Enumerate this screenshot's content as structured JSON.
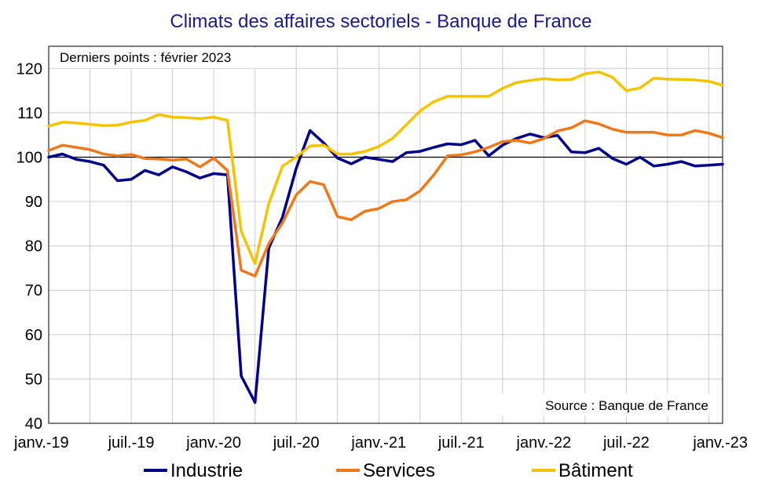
{
  "chart_data": {
    "type": "line",
    "title": "Climats des affaires sectoriels  - Banque de France",
    "annotation": "Derniers points : février 2023",
    "source": "Source : Banque de France",
    "xlabel": "",
    "ylabel": "",
    "ylim": [
      40,
      125
    ],
    "yticks": [
      40,
      50,
      60,
      70,
      80,
      90,
      100,
      110,
      120
    ],
    "reference_line": 100,
    "x": [
      "2019-01",
      "2019-02",
      "2019-03",
      "2019-04",
      "2019-05",
      "2019-06",
      "2019-07",
      "2019-08",
      "2019-09",
      "2019-10",
      "2019-11",
      "2019-12",
      "2020-01",
      "2020-02",
      "2020-03",
      "2020-04",
      "2020-05",
      "2020-06",
      "2020-07",
      "2020-08",
      "2020-09",
      "2020-10",
      "2020-11",
      "2020-12",
      "2021-01",
      "2021-02",
      "2021-03",
      "2021-04",
      "2021-05",
      "2021-06",
      "2021-07",
      "2021-08",
      "2021-09",
      "2021-10",
      "2021-11",
      "2021-12",
      "2022-01",
      "2022-02",
      "2022-03",
      "2022-04",
      "2022-05",
      "2022-06",
      "2022-07",
      "2022-08",
      "2022-09",
      "2022-10",
      "2022-11",
      "2022-12",
      "2023-01",
      "2023-02"
    ],
    "x_tick_labels": [
      "janv.-19",
      "juil.-19",
      "janv.-20",
      "juil.-20",
      "janv.-21",
      "juil.-21",
      "janv.-22",
      "juil.-22",
      "janv.-23"
    ],
    "x_tick_positions": [
      0,
      6,
      12,
      18,
      24,
      30,
      36,
      42,
      48
    ],
    "grid": true,
    "legend_position": "bottom",
    "series": [
      {
        "name": "Industrie",
        "color": "#00008b",
        "values": [
          100,
          100.7,
          99.5,
          99,
          98.2,
          94.7,
          95,
          97,
          96,
          97.8,
          96.7,
          95.3,
          96.3,
          96,
          50.7,
          44.7,
          79.5,
          86.5,
          97.5,
          106,
          103.2,
          99.8,
          98.5,
          100,
          99.5,
          99,
          101,
          101.3,
          102.2,
          103,
          102.8,
          103.8,
          100.3,
          102.7,
          104.2,
          105.2,
          104.4,
          104.9,
          101.2,
          101,
          102,
          99.7,
          98.4,
          100,
          98,
          98.4,
          99,
          98,
          98.2,
          98.4
        ]
      },
      {
        "name": "Services",
        "color": "#f07818",
        "values": [
          101.5,
          102.7,
          102.2,
          101.7,
          100.7,
          100.3,
          100.6,
          99.7,
          99.6,
          99.3,
          99.6,
          97.8,
          99.8,
          97,
          74.5,
          73.2,
          80.5,
          85.2,
          91.5,
          94.5,
          93.8,
          86.6,
          85.9,
          87.8,
          88.4,
          90,
          90.4,
          92.4,
          96,
          100.3,
          100.5,
          101.2,
          102.2,
          103.5,
          103.8,
          103.2,
          104.2,
          105.9,
          106.6,
          108.2,
          107.5,
          106.3,
          105.6,
          105.6,
          105.6,
          105,
          105,
          106,
          105.4,
          104.4
        ]
      },
      {
        "name": "Bâtiment",
        "color": "#f5c400",
        "values": [
          107,
          107.9,
          107.7,
          107.4,
          107.1,
          107.2,
          107.9,
          108.3,
          109.6,
          109,
          108.9,
          108.7,
          109,
          108.3,
          83.3,
          76,
          89.5,
          98,
          100,
          102.5,
          102.7,
          100.7,
          100.7,
          101.3,
          102.4,
          104.2,
          107.3,
          110.4,
          112.5,
          113.7,
          113.7,
          113.7,
          113.7,
          115.5,
          116.8,
          117.3,
          117.7,
          117.4,
          117.5,
          118.8,
          119.2,
          118,
          115,
          115.6,
          117.8,
          117.6,
          117.5,
          117.4,
          117.1,
          116.2
        ]
      }
    ]
  }
}
